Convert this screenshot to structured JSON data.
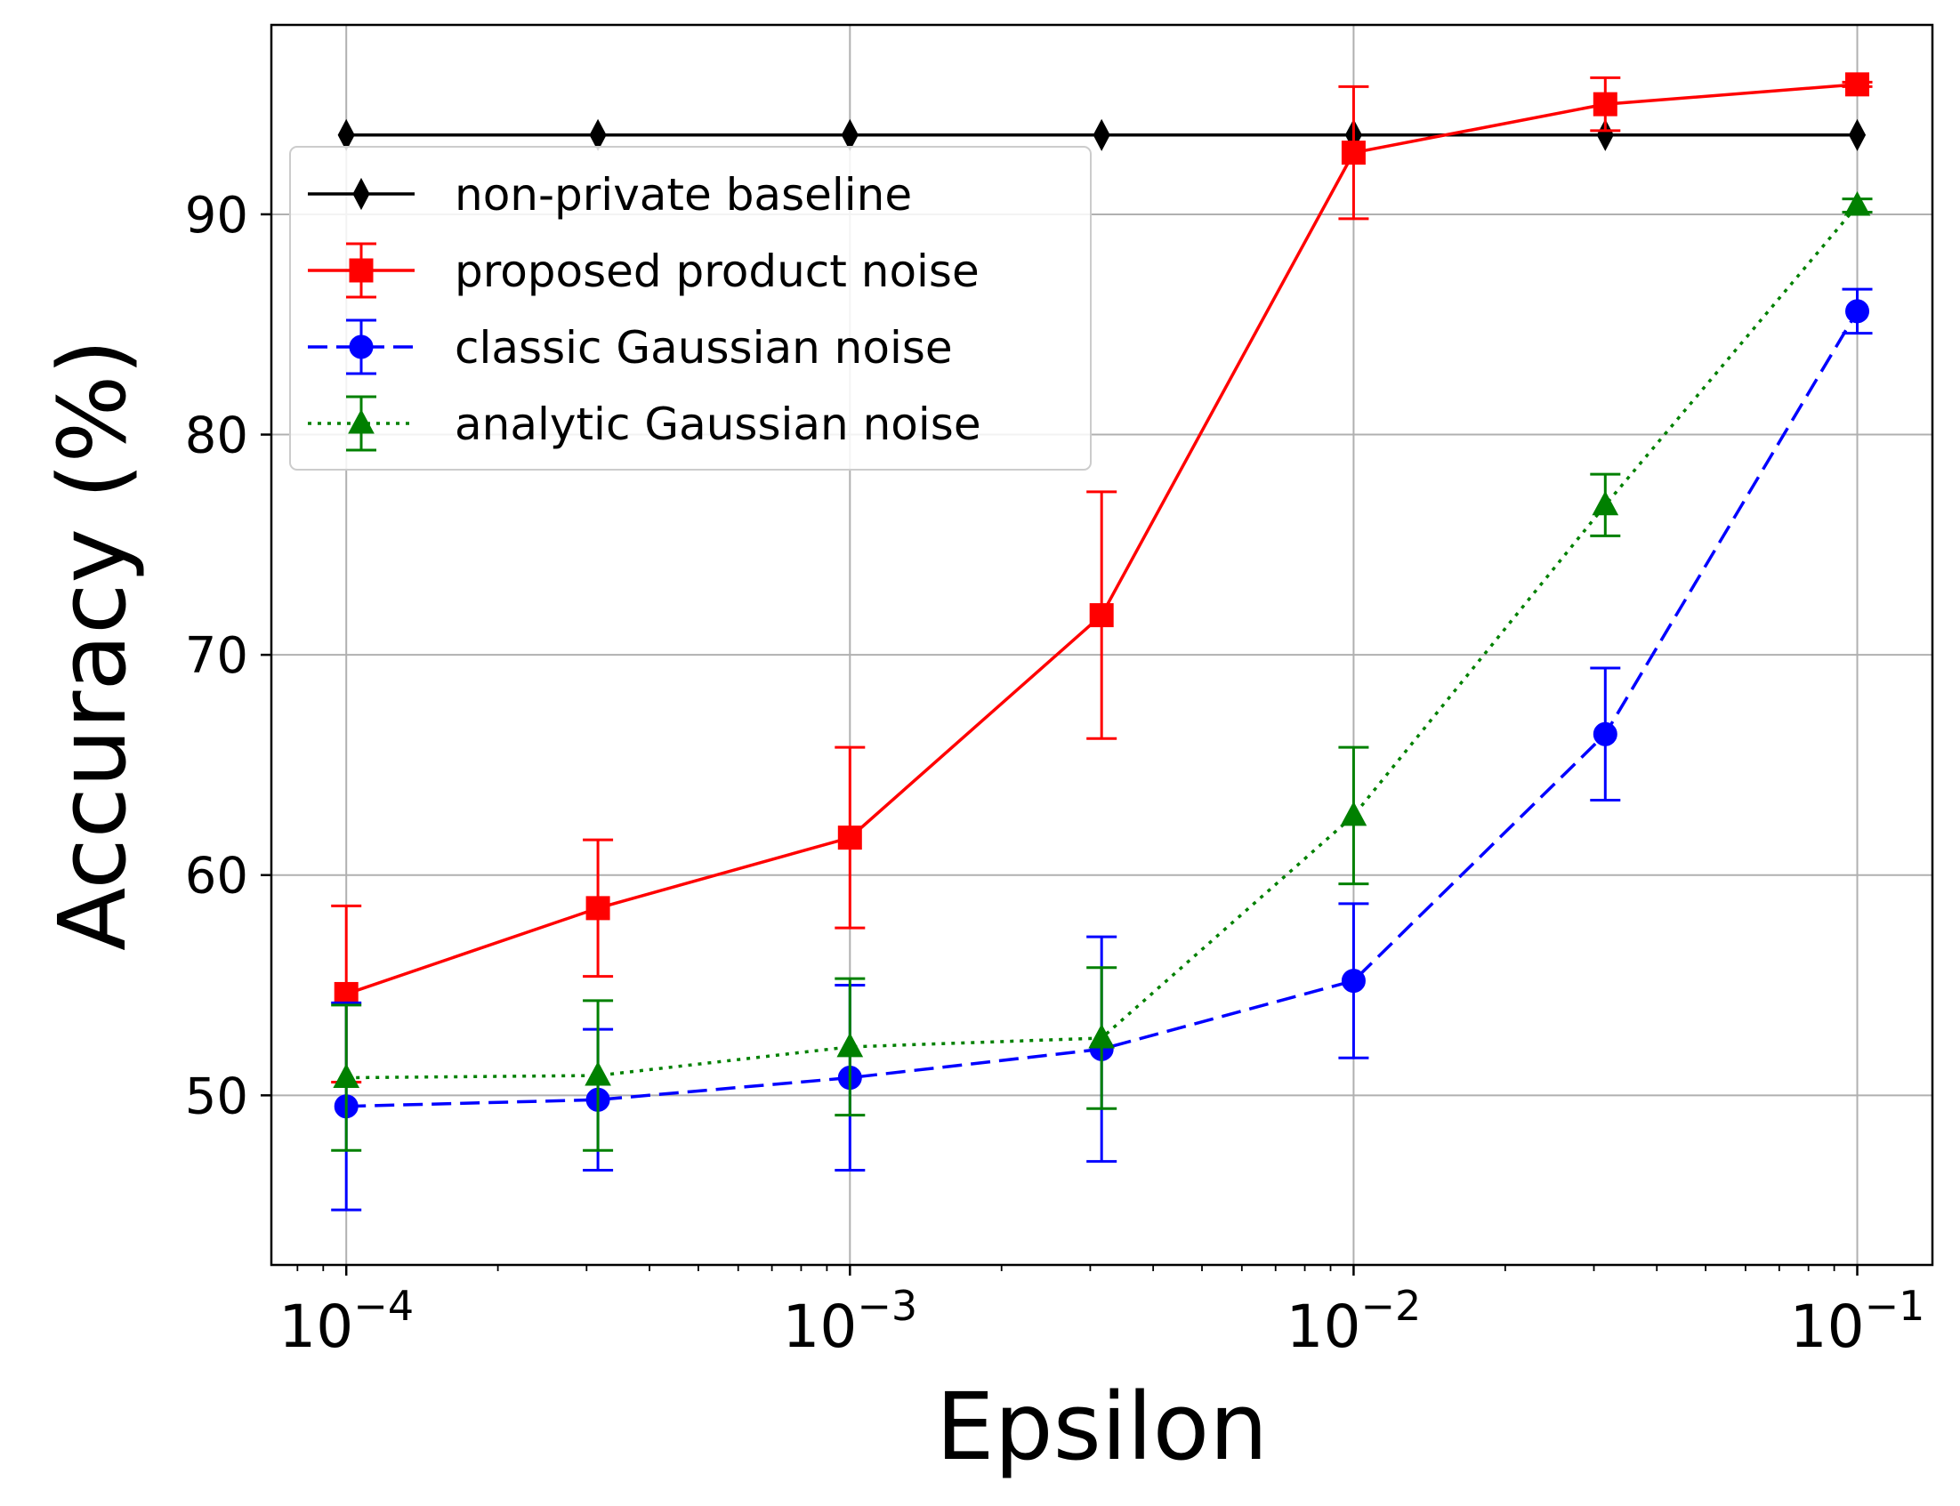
{
  "chart_data": {
    "type": "line",
    "title": "",
    "xlabel": "Epsilon",
    "ylabel": "Accuracy (%)",
    "xscale": "log",
    "xlim": [
      7.1e-05,
      0.141
    ],
    "ylim": [
      42.3,
      98.6
    ],
    "grid": true,
    "x": [
      0.0001,
      0.000316,
      0.001,
      0.00316,
      0.01,
      0.0316,
      0.1
    ],
    "xticks": [
      {
        "value": 0.0001,
        "base": "10",
        "exp": "−4"
      },
      {
        "value": 0.001,
        "base": "10",
        "exp": "−3"
      },
      {
        "value": 0.01,
        "base": "10",
        "exp": "−2"
      },
      {
        "value": 0.1,
        "base": "10",
        "exp": "−1"
      }
    ],
    "yticks": [
      50,
      60,
      70,
      80,
      90
    ],
    "legend_position": "upper-left",
    "series": [
      {
        "name": "non-private baseline",
        "color": "#000000",
        "linestyle": "solid",
        "marker": "diamond",
        "values": [
          93.6,
          93.6,
          93.6,
          93.6,
          93.6,
          93.6,
          93.6
        ],
        "errors": null
      },
      {
        "name": "proposed product noise",
        "color": "#ff0000",
        "linestyle": "solid",
        "marker": "square",
        "values": [
          54.6,
          58.5,
          61.7,
          71.8,
          92.8,
          95.0,
          95.9
        ],
        "errors": [
          4.0,
          3.1,
          4.1,
          5.6,
          3.0,
          1.2,
          0.1
        ]
      },
      {
        "name": "classic Gaussian noise",
        "color": "#0000ff",
        "linestyle": "dashed",
        "marker": "circle",
        "values": [
          49.5,
          49.8,
          50.8,
          52.1,
          55.2,
          66.4,
          85.6
        ],
        "errors": [
          4.7,
          3.2,
          4.2,
          5.1,
          3.5,
          3.0,
          1.0
        ]
      },
      {
        "name": "analytic Gaussian noise",
        "color": "#008000",
        "linestyle": "dotted",
        "marker": "triangle",
        "values": [
          50.8,
          50.9,
          52.2,
          52.6,
          62.7,
          76.8,
          90.4
        ],
        "errors": [
          3.3,
          3.4,
          3.1,
          3.2,
          3.1,
          1.4,
          0.3
        ]
      }
    ]
  }
}
